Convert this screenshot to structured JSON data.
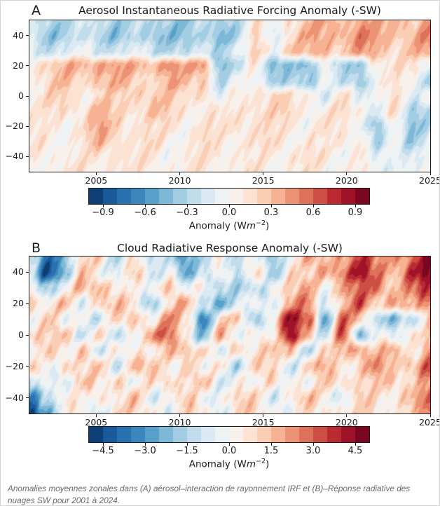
{
  "caption": "Anomalies moyennes zonales dans (A) aérosol–interaction de rayonnement IRF et (B)–Réponse radiative des nuages SW pour 2001 à 2024.",
  "style": {
    "background": "#ffffff",
    "border_color": "#d5d5d5",
    "text_color": "#1a1a1a",
    "caption_color": "#6a6a6a",
    "spine_color": "#1a1a1a",
    "colormap_rdbu_r_20": [
      "#0d3e74",
      "#1a5a9a",
      "#2a71b2",
      "#3b87bd",
      "#57a0ca",
      "#7eb8d7",
      "#a2cde3",
      "#c1ddec",
      "#dae9f2",
      "#edf2f5",
      "#f8f0eb",
      "#fbe2d3",
      "#facdb5",
      "#f6b293",
      "#ec9375",
      "#dd715a",
      "#cd4e44",
      "#bb2a33",
      "#9f1228",
      "#7a0622"
    ]
  },
  "chart_data": [
    {
      "type": "heatmap",
      "panel_label": "A",
      "title": "Aerosol Instantaneous Radiative Forcing Anomaly (-SW)",
      "x_tick_labels": [
        "2005",
        "2010",
        "2015",
        "2020",
        "2025"
      ],
      "x_tick_values": [
        2005,
        2010,
        2015,
        2020,
        2025
      ],
      "x_range": [
        2001,
        2025
      ],
      "y_tick_labels": [
        "40",
        "20",
        "0",
        "−20",
        "−40"
      ],
      "y_tick_values": [
        40,
        20,
        0,
        -20,
        -40
      ],
      "y_range": [
        -50,
        50
      ],
      "grid_on": false,
      "colorbar": {
        "label": "Anomaly (Wm⁻²)",
        "label_prefix": "Anomaly (W",
        "label_unit": "m",
        "label_exponent": "−2",
        "label_suffix": ")",
        "tick_labels": [
          "−0.9",
          "−0.6",
          "−0.3",
          "0.0",
          "0.3",
          "0.6",
          "0.9"
        ],
        "tick_values": [
          -0.9,
          -0.6,
          -0.3,
          0.0,
          0.3,
          0.6,
          0.9
        ],
        "range": [
          -1.0,
          1.0
        ],
        "n_levels": 20
      },
      "grid": {
        "years": [
          2001,
          2002,
          2003,
          2004,
          2005,
          2006,
          2007,
          2008,
          2009,
          2010,
          2011,
          2012,
          2013,
          2014,
          2015,
          2016,
          2017,
          2018,
          2019,
          2020,
          2021,
          2022,
          2023,
          2024
        ],
        "lats": [
          50,
          40,
          30,
          20,
          10,
          0,
          -10,
          -20,
          -30,
          -40,
          -50
        ],
        "values": [
          [
            -0.2,
            -0.3,
            -0.25,
            -0.2,
            -0.25,
            -0.3,
            -0.25,
            -0.35,
            -0.3,
            -0.35,
            -0.3,
            -0.35,
            -0.2,
            0.1,
            -0.1,
            0.2,
            0.3,
            0.35,
            0.3,
            0.45,
            0.3,
            0.35,
            0.3,
            0.4
          ],
          [
            -0.2,
            -0.35,
            -0.3,
            -0.25,
            -0.3,
            -0.35,
            -0.3,
            -0.4,
            -0.35,
            -0.4,
            -0.35,
            -0.4,
            -0.25,
            0.15,
            -0.15,
            0.25,
            0.35,
            0.3,
            0.4,
            0.5,
            0.35,
            0.3,
            0.35,
            0.45
          ],
          [
            -0.1,
            -0.2,
            -0.15,
            -0.1,
            -0.15,
            -0.2,
            -0.15,
            -0.2,
            -0.25,
            -0.3,
            -0.2,
            -0.25,
            -0.1,
            0.15,
            0.05,
            0.3,
            0.25,
            0.35,
            0.3,
            0.4,
            0.3,
            0.25,
            0.3,
            0.35
          ],
          [
            0.15,
            0.25,
            0.3,
            0.3,
            0.45,
            0.4,
            0.3,
            0.35,
            0.5,
            0.3,
            0.45,
            -0.4,
            -0.3,
            0.1,
            -0.35,
            -0.45,
            -0.5,
            0.1,
            -0.35,
            -0.45,
            0.15,
            0.2,
            0.1,
            -0.2
          ],
          [
            0.1,
            0.2,
            0.25,
            0.2,
            0.35,
            0.3,
            0.25,
            0.2,
            0.35,
            0.25,
            0.3,
            -0.3,
            -0.1,
            0.1,
            -0.3,
            -0.4,
            -0.35,
            0.05,
            -0.3,
            -0.4,
            0.1,
            0.15,
            -0.1,
            -0.3
          ],
          [
            0.1,
            0.15,
            0.2,
            0.1,
            0.2,
            0.15,
            0.25,
            0.3,
            0.2,
            0.15,
            0.25,
            -0.2,
            0.1,
            0.15,
            0.2,
            0.1,
            0.15,
            -0.15,
            0.1,
            -0.1,
            0.05,
            0.1,
            -0.15,
            0.1
          ],
          [
            0.1,
            0.1,
            0.15,
            0.2,
            0.3,
            0.2,
            0.2,
            0.25,
            0.2,
            0.15,
            0.1,
            0.05,
            0.15,
            0.2,
            0.15,
            0.2,
            0.1,
            0.05,
            0.15,
            0.1,
            -0.1,
            0.1,
            -0.3,
            -0.2
          ],
          [
            0.1,
            0.05,
            0.1,
            0.15,
            0.35,
            0.25,
            0.15,
            0.1,
            0.15,
            0.1,
            0.1,
            0.1,
            0.2,
            0.15,
            0.1,
            0.15,
            0.05,
            0.1,
            0.1,
            0.05,
            -0.45,
            0.0,
            -0.35,
            -0.25
          ],
          [
            0.05,
            0.1,
            0.05,
            0.1,
            0.3,
            0.25,
            0.1,
            0.15,
            0.1,
            0.05,
            0.15,
            0.1,
            0.15,
            0.1,
            0.15,
            0.1,
            0.1,
            0.05,
            0.15,
            0.1,
            -0.4,
            0.0,
            -0.3,
            -0.2
          ],
          [
            0.05,
            0.1,
            0.1,
            0.05,
            0.15,
            0.2,
            0.1,
            0.1,
            0.05,
            0.1,
            0.1,
            0.15,
            0.1,
            0.05,
            0.1,
            0.15,
            0.1,
            0.1,
            0.05,
            0.1,
            -0.2,
            0.05,
            -0.15,
            -0.1
          ],
          [
            0.05,
            0.05,
            0.1,
            0.1,
            0.1,
            0.15,
            0.05,
            0.1,
            0.1,
            0.05,
            0.1,
            0.1,
            0.05,
            0.1,
            0.05,
            0.1,
            0.1,
            0.05,
            0.1,
            0.05,
            -0.1,
            0.0,
            -0.1,
            -0.05
          ]
        ]
      }
    },
    {
      "type": "heatmap",
      "panel_label": "B",
      "title": "Cloud Radiative Response Anomaly (-SW)",
      "x_tick_labels": [
        "2005",
        "2010",
        "2015",
        "2020",
        "2025"
      ],
      "x_tick_values": [
        2005,
        2010,
        2015,
        2020,
        2025
      ],
      "x_range": [
        2001,
        2025
      ],
      "y_tick_labels": [
        "40",
        "20",
        "0",
        "−20",
        "−40"
      ],
      "y_tick_values": [
        40,
        20,
        0,
        -20,
        -40
      ],
      "y_range": [
        -50,
        50
      ],
      "grid_on": false,
      "colorbar": {
        "label": "Anomaly (Wm⁻²)",
        "label_prefix": "Anomaly (W",
        "label_unit": "m",
        "label_exponent": "−2",
        "label_suffix": ")",
        "tick_labels": [
          "−4.5",
          "−3.0",
          "−1.5",
          "0.0",
          "1.5",
          "3.0",
          "4.5"
        ],
        "tick_values": [
          -4.5,
          -3.0,
          -1.5,
          0.0,
          1.5,
          3.0,
          4.5
        ],
        "range": [
          -5.0,
          5.0
        ],
        "n_levels": 20
      },
      "grid": {
        "years": [
          2001,
          2002,
          2003,
          2004,
          2005,
          2006,
          2007,
          2008,
          2009,
          2010,
          2011,
          2012,
          2013,
          2014,
          2015,
          2016,
          2017,
          2018,
          2019,
          2020,
          2021,
          2022,
          2023,
          2024
        ],
        "lats": [
          50,
          40,
          30,
          20,
          10,
          0,
          -10,
          -20,
          -30,
          -40,
          -50
        ],
        "values": [
          [
            -1.5,
            -3.5,
            -2.0,
            0.5,
            1.0,
            -1.0,
            0.5,
            -1.5,
            -0.5,
            -3.0,
            -2.0,
            0.5,
            -1.0,
            -0.5,
            -2.0,
            0.5,
            1.5,
            1.0,
            2.5,
            3.5,
            2.0,
            2.5,
            3.0,
            4.0
          ],
          [
            -1.0,
            -4.0,
            -2.5,
            1.0,
            0.5,
            -0.5,
            1.0,
            -1.0,
            0.5,
            -3.0,
            -1.5,
            1.0,
            -1.5,
            0.5,
            -1.5,
            1.0,
            0.5,
            2.0,
            3.0,
            4.0,
            2.5,
            2.0,
            3.5,
            4.5
          ],
          [
            0.5,
            -1.5,
            -0.5,
            1.5,
            2.0,
            0.5,
            -0.5,
            0.5,
            1.5,
            -1.0,
            0.5,
            -1.0,
            -2.0,
            -1.5,
            0.5,
            1.0,
            1.5,
            0.5,
            2.0,
            2.5,
            3.0,
            1.5,
            2.5,
            3.5
          ],
          [
            1.5,
            0.5,
            1.0,
            -0.5,
            1.5,
            1.0,
            0.5,
            -1.5,
            0.5,
            1.5,
            -0.5,
            -2.5,
            -1.5,
            0.5,
            -0.5,
            1.5,
            2.5,
            -0.5,
            1.0,
            3.0,
            1.5,
            2.0,
            1.0,
            3.0
          ],
          [
            0.5,
            1.0,
            -0.5,
            0.5,
            -1.0,
            0.5,
            1.5,
            0.5,
            2.0,
            1.0,
            -3.0,
            0.5,
            1.0,
            -1.5,
            0.5,
            4.0,
            3.5,
            -2.5,
            2.5,
            1.5,
            -1.0,
            -2.5,
            -1.5,
            2.0
          ],
          [
            1.0,
            0.5,
            1.5,
            -0.5,
            0.5,
            -1.5,
            0.5,
            2.0,
            2.5,
            0.5,
            -2.0,
            1.5,
            -0.5,
            1.0,
            -0.5,
            4.5,
            2.0,
            -1.5,
            3.0,
            -2.0,
            0.5,
            -1.5,
            1.0,
            1.5
          ],
          [
            -0.5,
            1.0,
            0.5,
            1.5,
            -1.5,
            0.5,
            1.0,
            -0.5,
            1.5,
            2.0,
            0.5,
            -1.0,
            1.5,
            0.5,
            1.0,
            1.5,
            -1.0,
            0.5,
            1.5,
            2.5,
            1.0,
            1.5,
            0.5,
            2.5
          ],
          [
            1.0,
            -0.5,
            1.5,
            0.5,
            1.0,
            -0.5,
            1.5,
            1.0,
            0.5,
            1.5,
            -0.5,
            0.5,
            -1.0,
            1.0,
            0.5,
            -0.5,
            1.0,
            1.5,
            0.5,
            1.5,
            2.0,
            1.0,
            2.0,
            3.0
          ],
          [
            -2.0,
            0.5,
            -0.5,
            1.0,
            0.5,
            1.5,
            -0.5,
            0.5,
            1.5,
            0.5,
            1.0,
            -0.5,
            0.5,
            -0.5,
            1.0,
            0.5,
            -0.5,
            1.0,
            1.5,
            0.5,
            1.0,
            1.5,
            1.0,
            2.0
          ],
          [
            -3.5,
            -1.0,
            0.5,
            -0.5,
            1.0,
            0.5,
            1.0,
            -0.5,
            0.5,
            1.0,
            -0.5,
            0.5,
            1.0,
            0.5,
            -0.5,
            0.5,
            1.0,
            0.5,
            -0.5,
            1.0,
            0.5,
            1.0,
            1.5,
            2.5
          ],
          [
            -4.5,
            -2.0,
            -0.5,
            0.5,
            -0.5,
            1.0,
            0.5,
            1.0,
            -0.5,
            0.5,
            1.0,
            -0.5,
            0.5,
            1.0,
            0.5,
            -0.5,
            0.5,
            1.0,
            0.5,
            0.5,
            1.0,
            0.5,
            1.0,
            2.0
          ]
        ]
      }
    }
  ]
}
